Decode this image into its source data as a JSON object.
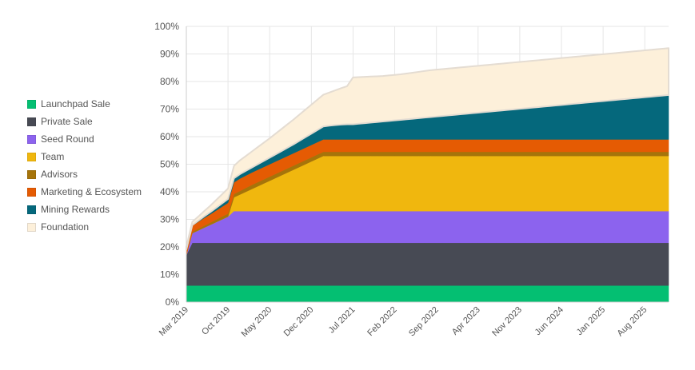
{
  "chart_data": {
    "type": "area",
    "stacked": true,
    "x": [
      "Mar 2019",
      "Apr 2019",
      "May 2019",
      "Jun 2019",
      "Jul 2019",
      "Aug 2019",
      "Sep 2019",
      "Oct 2019",
      "Nov 2019",
      "Dec 2019",
      "Jan 2020",
      "Feb 2020",
      "Mar 2020",
      "Apr 2020",
      "May 2020",
      "Jun 2020",
      "Jul 2020",
      "Aug 2020",
      "Sep 2020",
      "Oct 2020",
      "Nov 2020",
      "Dec 2020",
      "Jan 2021",
      "Feb 2021",
      "Mar 2021",
      "Apr 2021",
      "May 2021",
      "Jun 2021",
      "Jul 2021",
      "Aug 2021",
      "Sep 2021",
      "Oct 2021",
      "Nov 2021",
      "Dec 2021",
      "Jan 2022",
      "Feb 2022",
      "Mar 2022",
      "Apr 2022",
      "May 2022",
      "Jun 2022",
      "Jul 2022",
      "Aug 2022",
      "Sep 2022",
      "Oct 2022",
      "Nov 2022",
      "Dec 2022",
      "Jan 2023",
      "Feb 2023",
      "Mar 2023",
      "Apr 2023",
      "May 2023",
      "Jun 2023",
      "Jul 2023",
      "Aug 2023",
      "Sep 2023",
      "Oct 2023",
      "Nov 2023",
      "Dec 2023",
      "Jan 2024",
      "Feb 2024",
      "Mar 2024",
      "Apr 2024",
      "May 2024",
      "Jun 2024",
      "Jul 2024",
      "Aug 2024",
      "Sep 2024",
      "Oct 2024",
      "Nov 2024",
      "Dec 2024",
      "Jan 2025",
      "Feb 2025",
      "Mar 2025",
      "Apr 2025",
      "May 2025",
      "Jun 2025",
      "Jul 2025",
      "Aug 2025",
      "Sep 2025",
      "Oct 2025",
      "Nov 2025",
      "Dec 2025"
    ],
    "x_tick_labels": [
      "Mar 2019",
      "Oct 2019",
      "May 2020",
      "Dec 2020",
      "Jul 2021",
      "Feb 2022",
      "Sep 2022",
      "Apr 2023",
      "Nov 2023",
      "Jun 2024",
      "Jan 2025",
      "Aug 2025"
    ],
    "y_tick_labels": [
      "0%",
      "10%",
      "20%",
      "30%",
      "40%",
      "50%",
      "60%",
      "70%",
      "80%",
      "90%",
      "100%"
    ],
    "ylim": [
      0,
      100
    ],
    "y_unit": "%",
    "grid": true,
    "legend_position": "left",
    "series": [
      {
        "name": "Launchpad Sale",
        "color": "#04bf72",
        "values": [
          6,
          6,
          6,
          6,
          6,
          6,
          6,
          6,
          6,
          6,
          6,
          6,
          6,
          6,
          6,
          6,
          6,
          6,
          6,
          6,
          6,
          6,
          6,
          6,
          6,
          6,
          6,
          6,
          6,
          6,
          6,
          6,
          6,
          6,
          6,
          6,
          6,
          6,
          6,
          6,
          6,
          6,
          6,
          6,
          6,
          6,
          6,
          6,
          6,
          6,
          6,
          6,
          6,
          6,
          6,
          6,
          6,
          6,
          6,
          6,
          6,
          6,
          6,
          6,
          6,
          6,
          6,
          6,
          6,
          6,
          6,
          6,
          6,
          6,
          6,
          6,
          6,
          6,
          6,
          6,
          6,
          6
        ]
      },
      {
        "name": "Private Sale",
        "color": "#474a54",
        "values": [
          11,
          15.5,
          15.5,
          15.5,
          15.5,
          15.5,
          15.5,
          15.5,
          15.5,
          15.5,
          15.5,
          15.5,
          15.5,
          15.5,
          15.5,
          15.5,
          15.5,
          15.5,
          15.5,
          15.5,
          15.5,
          15.5,
          15.5,
          15.5,
          15.5,
          15.5,
          15.5,
          15.5,
          15.5,
          15.5,
          15.5,
          15.5,
          15.5,
          15.5,
          15.5,
          15.5,
          15.5,
          15.5,
          15.5,
          15.5,
          15.5,
          15.5,
          15.5,
          15.5,
          15.5,
          15.5,
          15.5,
          15.5,
          15.5,
          15.5,
          15.5,
          15.5,
          15.5,
          15.5,
          15.5,
          15.5,
          15.5,
          15.5,
          15.5,
          15.5,
          15.5,
          15.5,
          15.5,
          15.5,
          15.5,
          15.5,
          15.5,
          15.5,
          15.5,
          15.5,
          15.5,
          15.5,
          15.5,
          15.5,
          15.5,
          15.5,
          15.5,
          15.5,
          15.5,
          15.5,
          15.5,
          15.5
        ]
      },
      {
        "name": "Seed Round",
        "color": "#8c63ee",
        "values": [
          0,
          3.5,
          4.5,
          5.5,
          6.5,
          7.5,
          8.5,
          9.5,
          11.5,
          11.5,
          11.5,
          11.5,
          11.5,
          11.5,
          11.5,
          11.5,
          11.5,
          11.5,
          11.5,
          11.5,
          11.5,
          11.5,
          11.5,
          11.5,
          11.5,
          11.5,
          11.5,
          11.5,
          11.5,
          11.5,
          11.5,
          11.5,
          11.5,
          11.5,
          11.5,
          11.5,
          11.5,
          11.5,
          11.5,
          11.5,
          11.5,
          11.5,
          11.5,
          11.5,
          11.5,
          11.5,
          11.5,
          11.5,
          11.5,
          11.5,
          11.5,
          11.5,
          11.5,
          11.5,
          11.5,
          11.5,
          11.5,
          11.5,
          11.5,
          11.5,
          11.5,
          11.5,
          11.5,
          11.5,
          11.5,
          11.5,
          11.5,
          11.5,
          11.5,
          11.5,
          11.5,
          11.5,
          11.5,
          11.5,
          11.5,
          11.5,
          11.5,
          11.5,
          11.5,
          11.5,
          11.5,
          11.5
        ]
      },
      {
        "name": "Team",
        "color": "#f0b70e",
        "values": [
          0,
          0,
          0,
          0,
          0,
          0,
          0,
          0,
          5,
          6,
          7,
          8,
          9,
          10,
          11,
          12,
          13,
          14,
          15,
          16,
          17,
          18,
          19,
          20,
          20,
          20,
          20,
          20,
          20,
          20,
          20,
          20,
          20,
          20,
          20,
          20,
          20,
          20,
          20,
          20,
          20,
          20,
          20,
          20,
          20,
          20,
          20,
          20,
          20,
          20,
          20,
          20,
          20,
          20,
          20,
          20,
          20,
          20,
          20,
          20,
          20,
          20,
          20,
          20,
          20,
          20,
          20,
          20,
          20,
          20,
          20,
          20,
          20,
          20,
          20,
          20,
          20,
          20,
          20,
          20,
          20,
          20
        ]
      },
      {
        "name": "Advisors",
        "color": "#a6740a",
        "values": [
          0,
          0.5,
          0.6,
          0.7,
          0.8,
          0.9,
          1,
          1.1,
          1.2,
          1.3,
          1.4,
          1.5,
          1.5,
          1.5,
          1.5,
          1.5,
          1.5,
          1.5,
          1.5,
          1.5,
          1.5,
          1.5,
          1.5,
          1.5,
          1.5,
          1.5,
          1.5,
          1.5,
          1.5,
          1.5,
          1.5,
          1.5,
          1.5,
          1.5,
          1.5,
          1.5,
          1.5,
          1.5,
          1.5,
          1.5,
          1.5,
          1.5,
          1.5,
          1.5,
          1.5,
          1.5,
          1.5,
          1.5,
          1.5,
          1.5,
          1.5,
          1.5,
          1.5,
          1.5,
          1.5,
          1.5,
          1.5,
          1.5,
          1.5,
          1.5,
          1.5,
          1.5,
          1.5,
          1.5,
          1.5,
          1.5,
          1.5,
          1.5,
          1.5,
          1.5,
          1.5,
          1.5,
          1.5,
          1.5,
          1.5,
          1.5,
          1.5,
          1.5,
          1.5,
          1.5,
          1.5,
          1.5
        ]
      },
      {
        "name": "Marketing & Ecosystem",
        "color": "#e55b03",
        "values": [
          2,
          2.2,
          2.5,
          2.8,
          3,
          3.3,
          3.6,
          3.9,
          4.2,
          4.5,
          4.5,
          4.5,
          4.5,
          4.5,
          4.5,
          4.5,
          4.5,
          4.5,
          4.5,
          4.5,
          4.5,
          4.5,
          4.5,
          4.5,
          4.5,
          4.5,
          4.5,
          4.5,
          4.5,
          4.5,
          4.5,
          4.5,
          4.5,
          4.5,
          4.5,
          4.5,
          4.5,
          4.5,
          4.5,
          4.5,
          4.5,
          4.5,
          4.5,
          4.5,
          4.5,
          4.5,
          4.5,
          4.5,
          4.5,
          4.5,
          4.5,
          4.5,
          4.5,
          4.5,
          4.5,
          4.5,
          4.5,
          4.5,
          4.5,
          4.5,
          4.5,
          4.5,
          4.5,
          4.5,
          4.5,
          4.5,
          4.5,
          4.5,
          4.5,
          4.5,
          4.5,
          4.5,
          4.5,
          4.5,
          4.5,
          4.5,
          4.5,
          4.5,
          4.5,
          4.5,
          4.5,
          4.5
        ]
      },
      {
        "name": "Mining Rewards",
        "color": "#05687c",
        "values": [
          0,
          0.2,
          0.4,
          0.6,
          0.8,
          1,
          1.2,
          1.4,
          1.5,
          1.6,
          1.7,
          1.8,
          2,
          2.2,
          2.4,
          2.6,
          2.8,
          3,
          3.2,
          3.5,
          3.8,
          4.1,
          4.4,
          4.7,
          5,
          5.2,
          5.4,
          5.5,
          5.5,
          5.7,
          5.9,
          6.1,
          6.3,
          6.5,
          6.7,
          6.9,
          7.1,
          7.3,
          7.5,
          7.7,
          7.9,
          8.1,
          8.3,
          8.5,
          8.7,
          8.9,
          9.1,
          9.3,
          9.5,
          9.7,
          9.9,
          10.1,
          10.3,
          10.5,
          10.7,
          10.9,
          11.1,
          11.3,
          11.5,
          11.7,
          11.9,
          12.1,
          12.3,
          12.5,
          12.7,
          12.9,
          13.1,
          13.3,
          13.5,
          13.7,
          13.9,
          14.1,
          14.3,
          14.5,
          14.7,
          14.9,
          15.1,
          15.3,
          15.5,
          15.7,
          15.9,
          16.1
        ]
      },
      {
        "name": "Foundation",
        "color": "#fdf0da",
        "values": [
          1,
          1.2,
          1.5,
          1.9,
          2.3,
          2.8,
          3.3,
          3.8,
          4.5,
          5,
          5.4,
          5.8,
          6.2,
          6.6,
          7,
          7.5,
          8,
          8.5,
          9,
          9.5,
          10,
          10.5,
          11,
          11.5,
          12,
          12.6,
          13.2,
          13.8,
          17,
          16.9,
          16.8,
          16.7,
          16.6,
          16.5,
          16.5,
          16.5,
          16.5,
          16.6,
          16.7,
          16.8,
          16.9,
          17,
          17,
          17,
          17,
          17,
          17,
          17,
          17,
          17,
          17,
          17,
          17,
          17,
          17,
          17,
          17,
          17,
          17,
          17,
          17,
          17,
          17,
          17,
          17,
          17,
          17,
          17,
          17,
          17,
          17,
          17,
          17,
          17,
          17,
          17,
          17,
          17,
          17,
          17,
          17,
          17
        ]
      }
    ]
  }
}
